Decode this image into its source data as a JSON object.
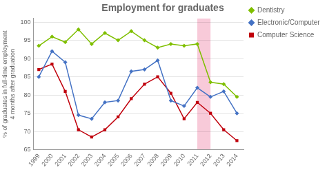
{
  "chart_data": {
    "type": "line",
    "title": "Employment for graduates",
    "ylabel": "% of graduates in full-time employment\n4 months after graduation",
    "x": [
      1999,
      2000,
      2001,
      2002,
      2003,
      2004,
      2005,
      2006,
      2007,
      2008,
      2009,
      2010,
      2011,
      2012,
      2013,
      2014
    ],
    "series": [
      {
        "name": "Dentistry",
        "color": "#7FBF00",
        "marker": "diamond",
        "values": [
          93.5,
          96.0,
          94.5,
          98.0,
          94.0,
          97.0,
          95.0,
          97.5,
          95.0,
          93.0,
          94.0,
          93.5,
          94.0,
          83.5,
          83.0,
          79.5
        ]
      },
      {
        "name": "Electronic/Computer  Engineer",
        "color": "#4472C4",
        "marker": "diamond",
        "values": [
          85.0,
          92.0,
          89.0,
          74.5,
          73.5,
          78.0,
          78.5,
          86.5,
          87.0,
          89.5,
          78.5,
          77.0,
          82.0,
          79.5,
          81.0,
          75.0
        ]
      },
      {
        "name": "Computer Science",
        "color": "#C0000C",
        "marker": "square",
        "values": [
          87.0,
          88.5,
          81.0,
          70.5,
          68.5,
          70.5,
          74.0,
          79.0,
          83.0,
          85.0,
          80.5,
          73.5,
          78.0,
          75.0,
          70.5,
          67.5
        ]
      }
    ],
    "highlight": {
      "x": [
        2011,
        2012
      ],
      "color": "#F4A7C0"
    },
    "xlim": [
      1998.6,
      2014.5
    ],
    "xticks": [
      1999,
      2000,
      2001,
      2002,
      2003,
      2004,
      2005,
      2006,
      2007,
      2008,
      2009,
      2010,
      2011,
      2012,
      2013,
      2014
    ],
    "ylim": [
      65,
      101
    ],
    "yticks": [
      65,
      70,
      75,
      80,
      85,
      90,
      95,
      100
    ],
    "grid": "y",
    "legend": "right"
  }
}
